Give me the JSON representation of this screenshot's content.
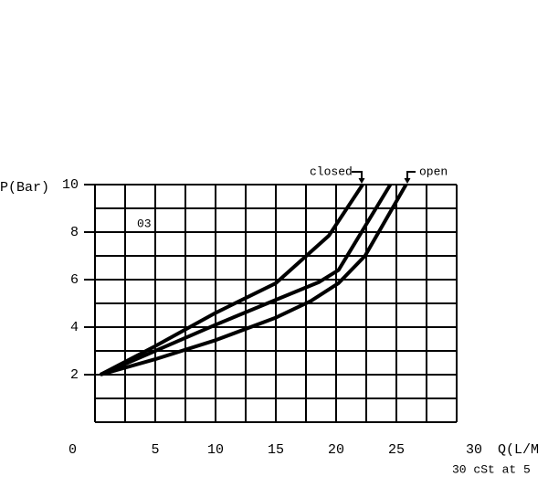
{
  "chart_data": {
    "type": "line",
    "y_label": "P(Bar)",
    "x_label": "Q(L/M",
    "note": "30 cSt at 5",
    "curve_code": "03",
    "annotations": [
      "closed",
      "open"
    ],
    "xlim": [
      0,
      30
    ],
    "ylim": [
      0,
      10
    ],
    "xticks": [
      0,
      5,
      10,
      15,
      20,
      25,
      30
    ],
    "yticks": [
      2,
      4,
      6,
      8,
      10
    ],
    "xgrid": [
      0,
      2.5,
      5,
      7.5,
      10,
      12.5,
      15,
      17.5,
      20,
      22.5,
      25,
      27.5,
      30
    ],
    "ygrid": [
      0,
      1,
      2,
      3,
      4,
      5,
      6,
      7,
      8,
      9,
      10
    ],
    "grid": true,
    "series": [
      {
        "color": "#000000",
        "x": [
          0.45,
          5,
          10,
          15,
          19.4,
          22.2
        ],
        "values": [
          2,
          3.2,
          4.6,
          5.85,
          7.85,
          10
        ]
      },
      {
        "color": "#000000",
        "x": [
          0.45,
          5,
          10,
          15,
          18.6,
          20.2,
          24.5
        ],
        "values": [
          2,
          3.0,
          4.1,
          5.15,
          5.9,
          6.4,
          10
        ]
      },
      {
        "color": "#000000",
        "x": [
          0.45,
          5,
          10,
          15,
          17.9,
          20.2,
          22.4,
          25.8
        ],
        "values": [
          2,
          2.65,
          3.45,
          4.4,
          5.1,
          5.85,
          7,
          10
        ]
      }
    ]
  }
}
